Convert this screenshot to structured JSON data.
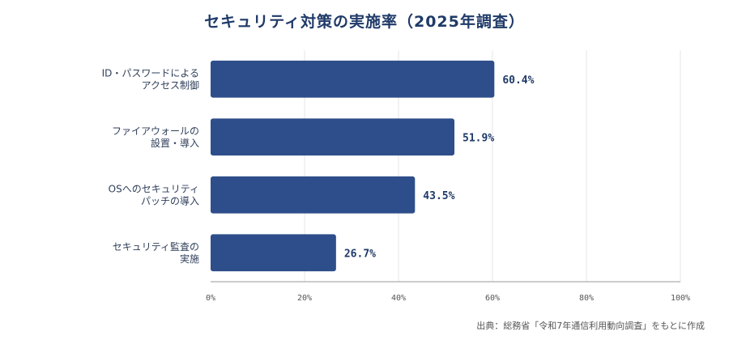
{
  "chart_data": {
    "type": "bar",
    "orientation": "horizontal",
    "title": "セキュリティ対策の実施率（2025年調査）",
    "categories": [
      [
        "ID・パスワードによる",
        "アクセス制御"
      ],
      [
        "ファイアウォールの",
        "設置・導入"
      ],
      [
        "OSへのセキュリティ",
        "パッチの導入"
      ],
      [
        "セキュリティ監査の",
        "実施"
      ]
    ],
    "values": [
      60.4,
      51.9,
      43.5,
      26.7
    ],
    "value_labels": [
      "60.4%",
      "51.9%",
      "43.5%",
      "26.7%"
    ],
    "xlim": [
      0,
      100
    ],
    "xticks": [
      0,
      20,
      40,
      60,
      80,
      100
    ],
    "xtick_labels": [
      "0%",
      "20%",
      "40%",
      "60%",
      "80%",
      "100%"
    ],
    "xlabel": "",
    "ylabel": "",
    "grid": true,
    "legend": "none",
    "bar_color": "#2d4e8a"
  },
  "source": "出典：総務省「令和7年通信利用動向調査」をもとに作成"
}
